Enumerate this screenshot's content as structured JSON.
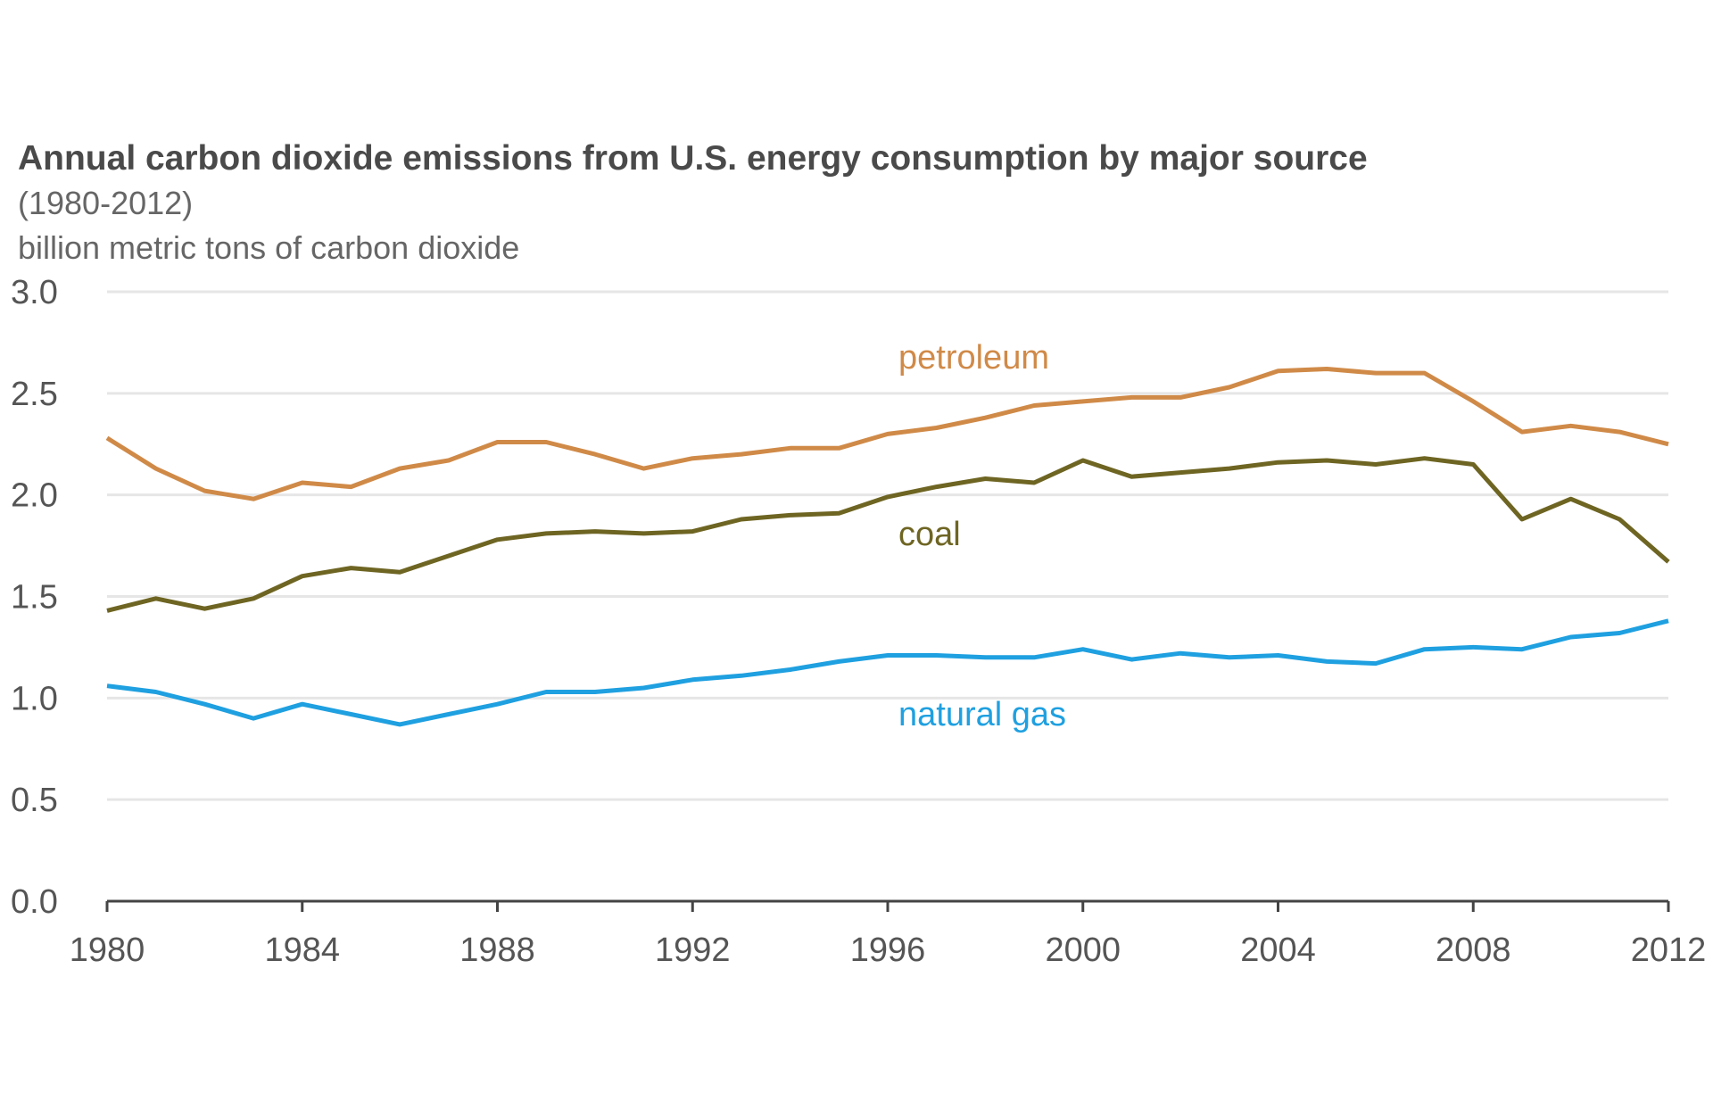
{
  "chart_data": {
    "type": "line",
    "title": "Annual carbon dioxide emissions from U.S. energy consumption by major source",
    "subtitle": "(1980-2012)",
    "ylabel": "billion metric tons of carbon dioxide",
    "ylim": [
      0,
      3.0
    ],
    "yticks": [
      "0.0",
      "0.5",
      "1.0",
      "1.5",
      "2.0",
      "2.5",
      "3.0"
    ],
    "xlim": [
      1980,
      2012
    ],
    "xticks": [
      "1980",
      "1984",
      "1988",
      "1992",
      "1996",
      "2000",
      "2004",
      "2008",
      "2012"
    ],
    "grid": true,
    "x": [
      1980,
      1981,
      1982,
      1983,
      1984,
      1985,
      1986,
      1987,
      1988,
      1989,
      1990,
      1991,
      1992,
      1993,
      1994,
      1995,
      1996,
      1997,
      1998,
      1999,
      2000,
      2001,
      2002,
      2003,
      2004,
      2005,
      2006,
      2007,
      2008,
      2009,
      2010,
      2011,
      2012
    ],
    "series": [
      {
        "name": "petroleum",
        "color": "#d08a48",
        "values": [
          2.28,
          2.13,
          2.02,
          1.98,
          2.06,
          2.04,
          2.13,
          2.17,
          2.26,
          2.26,
          2.2,
          2.13,
          2.18,
          2.2,
          2.23,
          2.23,
          2.3,
          2.33,
          2.38,
          2.44,
          2.46,
          2.48,
          2.48,
          2.53,
          2.61,
          2.62,
          2.6,
          2.6,
          2.46,
          2.31,
          2.34,
          2.31,
          2.25
        ]
      },
      {
        "name": "coal",
        "color": "#6e6523",
        "values": [
          1.43,
          1.49,
          1.44,
          1.49,
          1.6,
          1.64,
          1.62,
          1.7,
          1.78,
          1.81,
          1.82,
          1.81,
          1.82,
          1.88,
          1.9,
          1.91,
          1.99,
          2.04,
          2.08,
          2.06,
          2.17,
          2.09,
          2.11,
          2.13,
          2.16,
          2.17,
          2.15,
          2.18,
          2.15,
          1.88,
          1.98,
          1.88,
          1.67
        ]
      },
      {
        "name": "natural gas",
        "color": "#1fa0e0",
        "values": [
          1.06,
          1.03,
          0.97,
          0.9,
          0.97,
          0.92,
          0.87,
          0.92,
          0.97,
          1.03,
          1.03,
          1.05,
          1.09,
          1.11,
          1.14,
          1.18,
          1.21,
          1.21,
          1.2,
          1.2,
          1.24,
          1.19,
          1.22,
          1.2,
          1.21,
          1.18,
          1.17,
          1.24,
          1.25,
          1.24,
          1.3,
          1.32,
          1.38
        ]
      }
    ]
  }
}
